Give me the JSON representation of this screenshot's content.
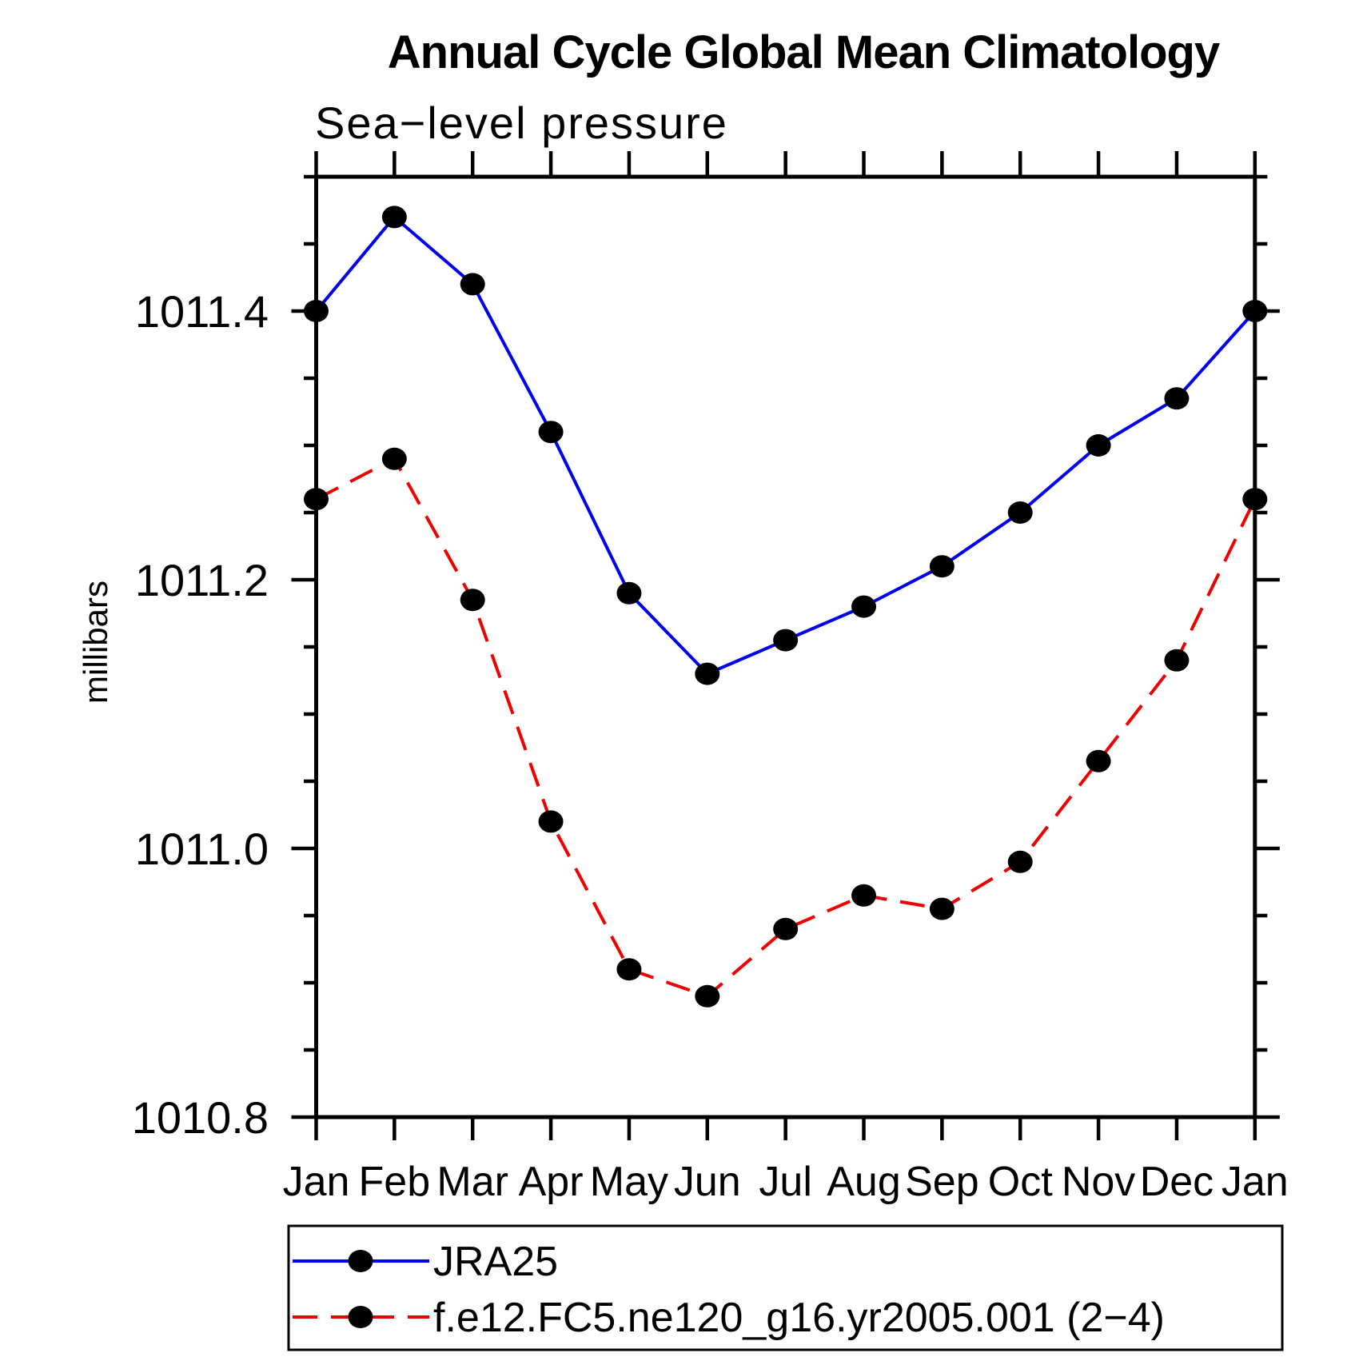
{
  "chart_data": {
    "type": "line",
    "title": "Annual Cycle Global Mean Climatology",
    "subtitle": "Sea−level pressure",
    "ylabel": "millibars",
    "xlabel": "",
    "x_categories": [
      "Jan",
      "Feb",
      "Mar",
      "Apr",
      "May",
      "Jun",
      "Jul",
      "Aug",
      "Sep",
      "Oct",
      "Nov",
      "Dec",
      "Jan"
    ],
    "ylim": [
      1010.8,
      1011.5
    ],
    "yticks_major": [
      {
        "value": 1010.8,
        "label": "1010.8"
      },
      {
        "value": 1011.0,
        "label": "1011.0"
      },
      {
        "value": 1011.2,
        "label": "1011.2"
      },
      {
        "value": 1011.4,
        "label": "1011.4"
      }
    ],
    "ytick_minor_step": 0.05,
    "grid": false,
    "frame_color": "#000000",
    "marker_color": "#000000",
    "legend_position": "bottom-left-box",
    "series": [
      {
        "name": "JRA25",
        "color": "#0000ee",
        "line_style": "solid",
        "marker": "filled-circle",
        "values": [
          1011.4,
          1011.47,
          1011.42,
          1011.31,
          1011.19,
          1011.13,
          1011.155,
          1011.18,
          1011.21,
          1011.25,
          1011.3,
          1011.335,
          1011.4
        ]
      },
      {
        "name": "f.e12.FC5.ne120_g16.yr2005.001 (2−4)",
        "color": "#ee0000",
        "line_style": "dashed",
        "marker": "filled-circle",
        "values": [
          1011.26,
          1011.29,
          1011.185,
          1011.02,
          1010.91,
          1010.89,
          1010.94,
          1010.965,
          1010.955,
          1010.99,
          1011.065,
          1011.14,
          1011.26
        ]
      }
    ]
  }
}
